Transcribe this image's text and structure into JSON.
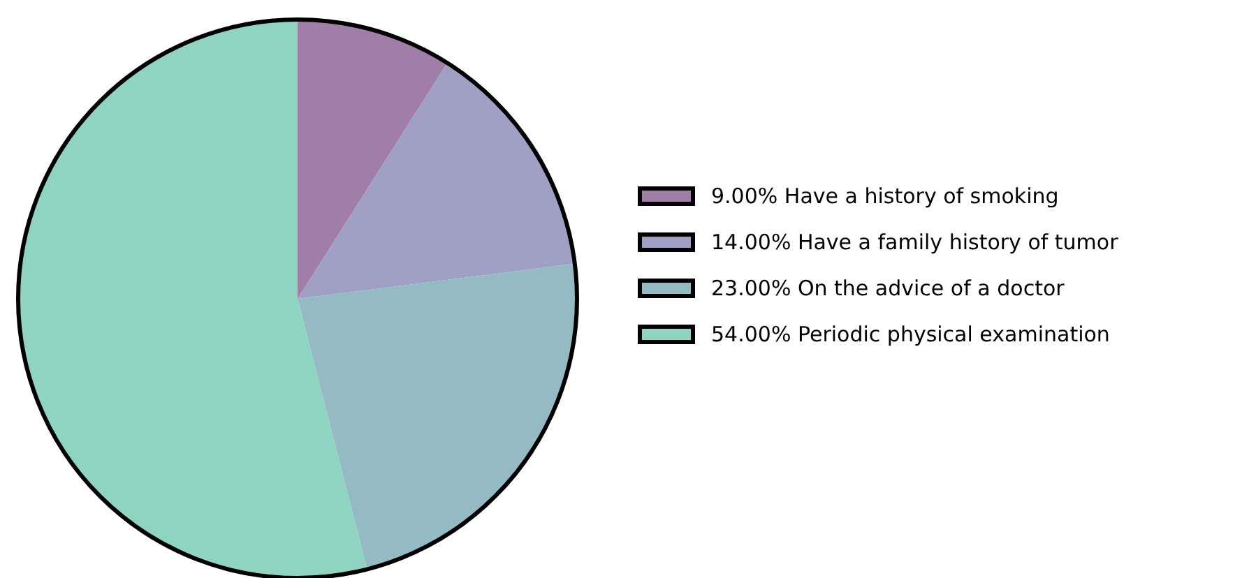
{
  "chart_data": {
    "type": "pie",
    "categories": [
      "9.00% Have a history of smoking",
      "14.00% Have a family history of tumor",
      "23.00% On the advice of a doctor",
      "54.00% Periodic physical examination"
    ],
    "values": [
      9,
      14,
      23,
      54
    ],
    "colors": [
      "#a07ea8",
      "#a0a0c4",
      "#94bac4",
      "#8fd4c0"
    ],
    "legend": "right"
  }
}
